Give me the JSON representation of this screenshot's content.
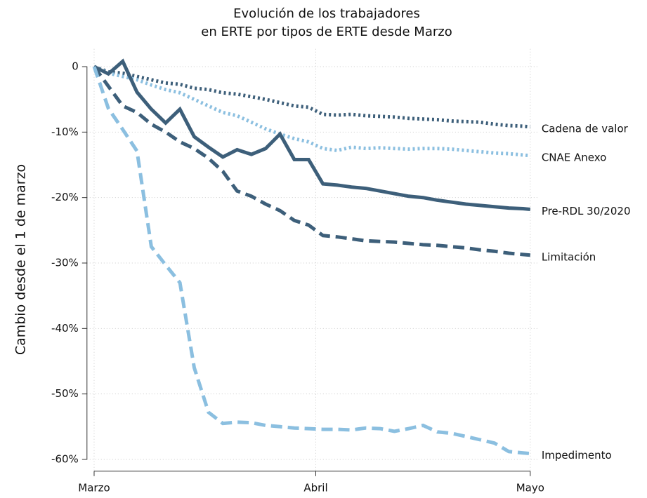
{
  "chart_data": {
    "type": "line",
    "title": [
      "Evolución de los trabajadores",
      "en ERTE por tipos de ERTE desde Marzo"
    ],
    "ylabel": "Cambio desde el 1 de marzo",
    "x": [
      0,
      2,
      4,
      6,
      8,
      10,
      12,
      14,
      16,
      18,
      20,
      22,
      24,
      26,
      28,
      30,
      32,
      34,
      36,
      38,
      40,
      42,
      44,
      46,
      48,
      50,
      52,
      54,
      56,
      58,
      60,
      61
    ],
    "xlim": [
      -1,
      62
    ],
    "xticks": [
      {
        "value": 0,
        "label": "Marzo"
      },
      {
        "value": 31,
        "label": "Abril"
      },
      {
        "value": 61,
        "label": "Mayo"
      }
    ],
    "ylim": [
      -61.8,
      2.7
    ],
    "yticks": [
      0,
      {
        "value": -10,
        "label": "-10%"
      },
      {
        "value": -20,
        "label": "-20%"
      },
      {
        "value": -30,
        "label": "-30%"
      },
      {
        "value": -40,
        "label": "-40%"
      },
      {
        "value": -50,
        "label": "-50%"
      },
      {
        "value": -60,
        "label": "-60%"
      }
    ],
    "grid": true,
    "series": [
      {
        "name": "Cadena de valor",
        "color": "#3d5f7a",
        "dash": "dotted",
        "values": [
          0,
          -0.8,
          -1,
          -1.5,
          -2,
          -2.5,
          -2.7,
          -3.3,
          -3.5,
          -4,
          -4.2,
          -4.6,
          -5,
          -5.5,
          -6,
          -6.2,
          -7.3,
          -7.4,
          -7.3,
          -7.5,
          -7.6,
          -7.7,
          -7.9,
          -8,
          -8.1,
          -8.3,
          -8.4,
          -8.5,
          -8.8,
          -9,
          -9.1,
          -9.2
        ]
      },
      {
        "name": "CNAE Anexo",
        "color": "#8bbfe0",
        "dash": "dotted",
        "values": [
          0,
          -1,
          -1.5,
          -2,
          -2.8,
          -3.5,
          -4,
          -5,
          -6,
          -7,
          -7.5,
          -8.5,
          -9.5,
          -10.3,
          -11,
          -11.5,
          -12.5,
          -12.8,
          -12.3,
          -12.5,
          -12.4,
          -12.5,
          -12.6,
          -12.5,
          -12.5,
          -12.6,
          -12.8,
          -13,
          -13.2,
          -13.3,
          -13.5,
          -13.6
        ]
      },
      {
        "name": "Pre-RDL 30/2020",
        "color": "#3d5f7a",
        "dash": "solid",
        "values": [
          0,
          -1.1,
          0.8,
          -3.9,
          -6.5,
          -8.6,
          -6.5,
          -10.7,
          -12.3,
          -13.8,
          -12.7,
          -13.4,
          -12.5,
          -10.3,
          -14.2,
          -14.2,
          -17.9,
          -18.1,
          -18.4,
          -18.6,
          -19,
          -19.4,
          -19.8,
          -20,
          -20.4,
          -20.7,
          -21,
          -21.2,
          -21.4,
          -21.6,
          -21.7,
          -21.8
        ]
      },
      {
        "name": "Limitación",
        "color": "#3d5f7a",
        "dash": "dashed",
        "values": [
          0,
          -3,
          -6,
          -7,
          -8.8,
          -10,
          -11.5,
          -12.5,
          -14,
          -16,
          -19,
          -19.8,
          -21,
          -22,
          -23.5,
          -24.2,
          -25.8,
          -26,
          -26.3,
          -26.6,
          -26.7,
          -26.8,
          -27,
          -27.2,
          -27.3,
          -27.5,
          -27.7,
          -28,
          -28.2,
          -28.5,
          -28.7,
          -28.8
        ]
      },
      {
        "name": "Impedimento",
        "color": "#8bbfe0",
        "dash": "dashed",
        "values": [
          0,
          -6.4,
          -9.6,
          -12.9,
          -27.5,
          -30.3,
          -33,
          -46,
          -52.8,
          -54.5,
          -54.3,
          -54.4,
          -54.8,
          -55,
          -55.2,
          -55.3,
          -55.4,
          -55.4,
          -55.5,
          -55.2,
          -55.3,
          -55.7,
          -55.3,
          -54.8,
          -55.8,
          -56,
          -56.5,
          -57,
          -57.5,
          -58.8,
          -59,
          -59.1
        ]
      }
    ]
  }
}
